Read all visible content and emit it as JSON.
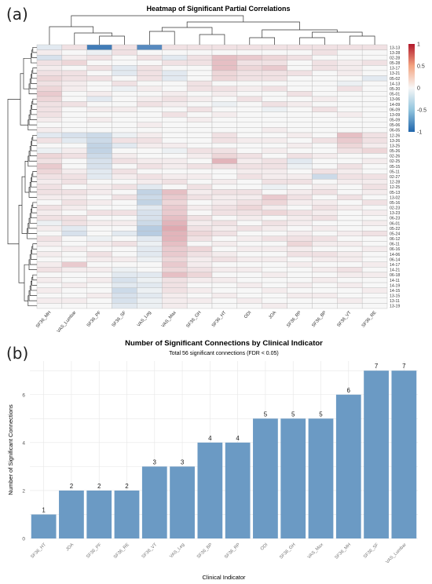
{
  "panel_labels": {
    "a": "(a)",
    "b": "(b)"
  },
  "chart_data": [
    {
      "type": "heatmap",
      "title": "Heatmap of Significant Partial Correlations",
      "columns": [
        "SF36_MH",
        "VAS_Lumbar",
        "SF36_PF",
        "SF36_SF",
        "VAS_Leg",
        "VAS_Max",
        "SF36_GH",
        "SF36_HT",
        "ODI",
        "JOA",
        "SF36_RP",
        "SF36_BP",
        "SF36_VT",
        "SF36_RE"
      ],
      "rows": [
        "13-13",
        "13-28",
        "02-28",
        "05-28",
        "13-17",
        "13-21",
        "05-02",
        "14-13",
        "05-20",
        "05-01",
        "13-06",
        "14-09",
        "06-09",
        "13-09",
        "05-09",
        "05-06",
        "06-05",
        "12-26",
        "13-26",
        "13-25",
        "05-26",
        "02-26",
        "02-25",
        "05-15",
        "05-11",
        "02-27",
        "12-28",
        "12-25",
        "05-13",
        "13-02",
        "05-16",
        "02-23",
        "13-23",
        "06-23",
        "06-01",
        "05-22",
        "05-24",
        "06-12",
        "06-11",
        "06-16",
        "14-06",
        "06-14",
        "14-17",
        "14-21",
        "06-18",
        "14-11",
        "14-19",
        "14-15",
        "13-15",
        "13-11",
        "13-19"
      ],
      "colorbar": {
        "ticks": [
          "1",
          "0.5",
          "0",
          "-0.5",
          "-1"
        ],
        "range": [
          -1,
          1
        ]
      },
      "colors": {
        "high": "#b2182b",
        "mid": "#f7f7f7",
        "low": "#2166ac"
      },
      "cells": [
        [
          -0.1,
          0.1,
          -0.85,
          0.1,
          -0.75,
          0.1,
          0.1,
          0.1,
          0.1,
          0.1,
          0.1,
          0.1,
          0.1,
          0.1
        ],
        [
          0.05,
          0,
          -0.05,
          0.1,
          0,
          0,
          0,
          0,
          0,
          0,
          0,
          0.1,
          0,
          0
        ],
        [
          -0.15,
          0.05,
          0.1,
          0,
          0.1,
          -0.1,
          0.1,
          0.25,
          0.2,
          0.15,
          0.1,
          0,
          0,
          0
        ],
        [
          0.1,
          0.15,
          0,
          0,
          0,
          0.1,
          0.1,
          0.25,
          0.1,
          0.1,
          0,
          0.1,
          0.05,
          0.1
        ],
        [
          0.05,
          0,
          0.1,
          -0.1,
          0.1,
          0,
          0,
          0.25,
          0.15,
          0.2,
          0,
          0.1,
          0.05,
          0
        ],
        [
          0.1,
          0.1,
          0,
          -0.1,
          0.1,
          -0.1,
          0,
          0.15,
          0.1,
          0.1,
          0.1,
          0,
          0.05,
          0
        ],
        [
          0.15,
          0.1,
          0.1,
          0,
          0.1,
          -0.1,
          0,
          0.15,
          0.1,
          0.1,
          0,
          0,
          0,
          -0.1
        ],
        [
          0.1,
          0.05,
          0,
          0.1,
          0,
          0,
          0.1,
          0,
          0,
          0,
          0,
          0,
          -0.05,
          0
        ],
        [
          0.15,
          0.05,
          0,
          -0.05,
          0.05,
          0,
          0.1,
          0.1,
          0.05,
          0.1,
          0,
          0,
          0.1,
          0
        ],
        [
          0.2,
          0,
          0.05,
          0,
          0,
          0.05,
          0,
          0.05,
          0,
          0,
          0.1,
          0,
          0,
          0
        ],
        [
          0.15,
          0,
          -0.1,
          0,
          0.05,
          0.1,
          0.05,
          0,
          0.1,
          0,
          0,
          0.05,
          0,
          0
        ],
        [
          0.1,
          0.1,
          0,
          0,
          0.1,
          0.05,
          0,
          -0.05,
          0,
          0.1,
          0.05,
          0,
          0,
          0
        ],
        [
          0.1,
          0,
          0.05,
          0.05,
          0,
          0,
          0.1,
          0,
          0,
          -0.05,
          0,
          0.1,
          0,
          0
        ],
        [
          0.1,
          0,
          0,
          0,
          0,
          0.1,
          0,
          0.05,
          0,
          0,
          0,
          0,
          0.05,
          0
        ],
        [
          0.05,
          0,
          0.05,
          0,
          0,
          0,
          0.05,
          0,
          0,
          0,
          0,
          0,
          0,
          0
        ],
        [
          0,
          0,
          0,
          0,
          0.05,
          0,
          0,
          0,
          0,
          0,
          0,
          0,
          0,
          0
        ],
        [
          0.05,
          0,
          0,
          0,
          0,
          0,
          0,
          0,
          0,
          0.05,
          0,
          0,
          0,
          0
        ],
        [
          -0.1,
          -0.15,
          -0.2,
          -0.05,
          0.05,
          0,
          0,
          0.1,
          0,
          0,
          0.05,
          0,
          0.25,
          0.1
        ],
        [
          0.1,
          -0.1,
          -0.2,
          0.1,
          0.1,
          0,
          0,
          0.1,
          0.05,
          0.05,
          0,
          0.1,
          0.2,
          0.1
        ],
        [
          0,
          0,
          -0.25,
          -0.1,
          0.05,
          0.05,
          0,
          0,
          0,
          0,
          0.05,
          0,
          0.15,
          0.05
        ],
        [
          -0.05,
          0.05,
          -0.25,
          0,
          0,
          -0.05,
          0.1,
          0.1,
          0,
          0.05,
          0,
          0,
          0.1,
          0.15
        ],
        [
          0.15,
          0.1,
          -0.2,
          0.05,
          0,
          0,
          0.05,
          0.15,
          0.1,
          0,
          0.1,
          0.05,
          0,
          0
        ],
        [
          0.1,
          0,
          -0.15,
          0.1,
          0.05,
          0.05,
          0,
          0.3,
          0.05,
          0.1,
          -0.1,
          0,
          0,
          0.05
        ],
        [
          0.2,
          0,
          -0.15,
          0,
          0.1,
          0.05,
          0.1,
          0.1,
          0.1,
          0.1,
          -0.05,
          0,
          0.1,
          0
        ],
        [
          0.15,
          0.05,
          -0.1,
          0.1,
          0,
          0,
          0,
          0,
          0.05,
          0.05,
          0,
          0.1,
          0.05,
          0
        ],
        [
          0.1,
          0.1,
          -0.1,
          0.05,
          0.1,
          0.05,
          0.05,
          0,
          0.1,
          0.05,
          0.05,
          -0.2,
          0.1,
          0.1
        ],
        [
          0.05,
          0.1,
          0,
          0,
          0.05,
          0.1,
          0,
          0.05,
          0,
          0.1,
          0.1,
          0,
          0.05,
          0.05
        ],
        [
          0.1,
          0,
          0.05,
          0.1,
          -0.1,
          0,
          0.1,
          0,
          0,
          -0.05,
          0,
          0.05,
          0,
          0.1
        ],
        [
          0.1,
          0.1,
          0.05,
          0,
          -0.25,
          0.25,
          0.05,
          0.1,
          0.1,
          0,
          0.05,
          0.1,
          0,
          0.05
        ],
        [
          0.05,
          0.05,
          0,
          0.1,
          -0.2,
          0.2,
          0.1,
          0.05,
          0.05,
          0.2,
          0.1,
          0,
          0.1,
          0
        ],
        [
          0,
          0.1,
          0.05,
          0,
          -0.25,
          0.15,
          0,
          0.05,
          0.1,
          0.15,
          0.05,
          0.05,
          0,
          0.1
        ],
        [
          0.1,
          0.05,
          0,
          0,
          -0.1,
          0.2,
          0.05,
          0.1,
          0.15,
          0.05,
          0,
          0.1,
          0.05,
          0
        ],
        [
          0.05,
          0,
          0.1,
          0.1,
          -0.15,
          0.2,
          0,
          0.1,
          0.1,
          0.15,
          0.1,
          0.05,
          0,
          0.05
        ],
        [
          0.1,
          0.1,
          0,
          0,
          -0.15,
          0.25,
          0.1,
          0,
          0.05,
          0,
          0.05,
          0.1,
          0,
          0
        ],
        [
          -0.05,
          0.1,
          0.05,
          0.05,
          -0.2,
          0.3,
          0.05,
          0.1,
          0,
          0.1,
          0.05,
          0,
          0,
          0.05
        ],
        [
          0.05,
          -0.1,
          0,
          0,
          -0.3,
          0.35,
          0.1,
          0.05,
          0.1,
          0.05,
          0,
          0.05,
          0,
          0
        ],
        [
          0,
          -0.15,
          0,
          -0.1,
          -0.3,
          0.3,
          0.15,
          0.1,
          0,
          0,
          0.05,
          0,
          0.05,
          0.1
        ],
        [
          0.1,
          0,
          -0.05,
          0,
          -0.1,
          0.3,
          0.1,
          0,
          0.05,
          0.1,
          0.1,
          0.1,
          0,
          0
        ],
        [
          0.05,
          0,
          0.05,
          0.1,
          -0.05,
          0.25,
          0,
          0.05,
          0,
          0,
          0.15,
          0.05,
          0.05,
          0
        ],
        [
          0,
          0.05,
          0,
          0,
          -0.1,
          0.2,
          0.15,
          0,
          0.05,
          0.05,
          0.05,
          0,
          0,
          0.05
        ],
        [
          0.05,
          0,
          0.1,
          0,
          -0.1,
          0.2,
          0.1,
          0.05,
          0,
          0,
          0.1,
          0.1,
          0.05,
          0
        ],
        [
          0,
          0,
          0.05,
          0.05,
          -0.05,
          0.15,
          0.05,
          0.1,
          0.05,
          0.05,
          0,
          0.05,
          0.05,
          0
        ],
        [
          0.05,
          0.2,
          0,
          0,
          0,
          0.2,
          0.05,
          0,
          0,
          0,
          0.05,
          0,
          0,
          0.05
        ],
        [
          0.1,
          0.05,
          0.05,
          -0.05,
          0,
          0.15,
          0.1,
          0.05,
          0.05,
          0,
          0,
          0.05,
          0.1,
          0
        ],
        [
          0,
          0,
          0,
          -0.1,
          -0.1,
          0.25,
          0.15,
          0,
          0,
          0.05,
          0,
          0,
          0.05,
          0.05
        ],
        [
          0.05,
          0,
          0.05,
          -0.15,
          -0.05,
          0.1,
          0.05,
          0.05,
          0,
          0,
          0,
          0.05,
          0,
          0
        ],
        [
          0,
          0.05,
          0,
          -0.1,
          -0.1,
          0.1,
          0,
          0,
          0.05,
          0,
          0.05,
          0,
          0.05,
          0
        ],
        [
          0.05,
          0,
          0,
          -0.2,
          -0.05,
          0.1,
          0.05,
          0,
          0,
          0.05,
          0,
          0,
          0,
          0.05
        ],
        [
          0,
          0,
          0.05,
          -0.15,
          -0.1,
          0.05,
          0,
          0.05,
          0,
          0,
          0.05,
          0.05,
          0,
          0
        ],
        [
          0.05,
          0.05,
          0,
          -0.15,
          -0.05,
          0.05,
          0.05,
          0,
          0.05,
          0,
          0,
          0,
          0.05,
          0
        ],
        [
          0,
          0,
          0,
          -0.1,
          -0.05,
          0.05,
          0,
          0,
          0,
          0.05,
          0,
          0,
          0,
          0
        ]
      ]
    },
    {
      "type": "bar",
      "title": "Number of Significant Connections by Clinical Indicator",
      "subtitle": "Total 56 significant connections (FDR < 0.05)",
      "xlabel": "Clinical Indicator",
      "ylabel": "Number of Significant Connections",
      "categories": [
        "SF36_HT",
        "JOA",
        "SF36_PF",
        "SF36_RE",
        "SF36_VT",
        "VAS_Leg",
        "SF36_BP",
        "SF36_RP",
        "ODI",
        "SF36_GH",
        "VAS_Max",
        "SF36_MH",
        "SF36_SF",
        "VAS_Lumbar"
      ],
      "values": [
        1,
        2,
        2,
        2,
        3,
        3,
        4,
        4,
        5,
        5,
        5,
        6,
        7,
        7
      ],
      "yticks": [
        0,
        2,
        4,
        6
      ],
      "ylim": [
        0,
        7.4
      ],
      "grid": true,
      "bar_color": "#6b9ac4"
    }
  ]
}
